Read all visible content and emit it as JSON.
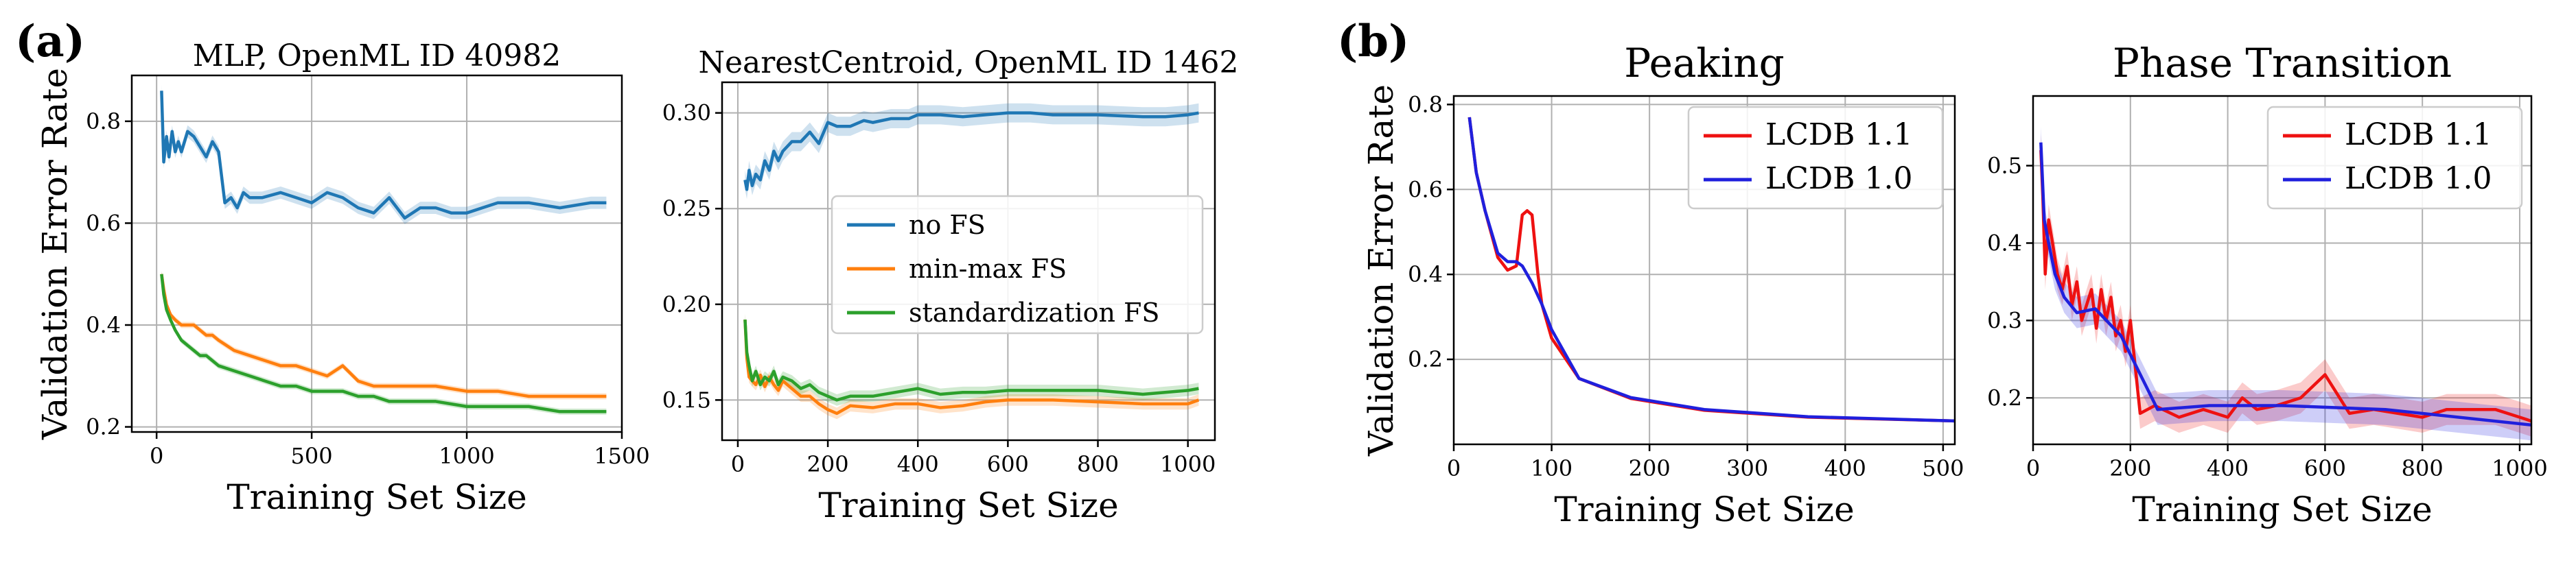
{
  "figure": {
    "panel_a_label": "(a)",
    "panel_b_label": "(b)"
  },
  "chart_data": [
    {
      "type": "line",
      "title": "MLP, OpenML ID 40982",
      "xlabel": "Training Set Size",
      "ylabel": "Validation Error Rate",
      "xlim": [
        -80,
        1500
      ],
      "ylim": [
        0.19,
        0.89
      ],
      "xticks": [
        0,
        500,
        1000,
        1500
      ],
      "yticks": [
        0.2,
        0.4,
        0.6,
        0.8
      ],
      "ytick_labels": [
        "0.2",
        "0.4",
        "0.6",
        "0.8"
      ],
      "legend": [],
      "series": [
        {
          "name": "no FS",
          "color": "#1f77b4",
          "band": 0.012,
          "x": [
            16,
            23,
            32,
            40,
            50,
            60,
            70,
            80,
            100,
            120,
            140,
            160,
            180,
            200,
            220,
            240,
            260,
            280,
            300,
            340,
            400,
            450,
            500,
            550,
            600,
            650,
            700,
            750,
            800,
            850,
            900,
            950,
            1000,
            1050,
            1100,
            1200,
            1300,
            1400,
            1450
          ],
          "y": [
            0.86,
            0.72,
            0.77,
            0.73,
            0.78,
            0.74,
            0.76,
            0.74,
            0.78,
            0.77,
            0.75,
            0.73,
            0.76,
            0.74,
            0.64,
            0.65,
            0.63,
            0.66,
            0.65,
            0.65,
            0.66,
            0.65,
            0.64,
            0.66,
            0.65,
            0.63,
            0.62,
            0.65,
            0.61,
            0.63,
            0.63,
            0.62,
            0.62,
            0.63,
            0.64,
            0.64,
            0.63,
            0.64,
            0.64
          ]
        },
        {
          "name": "min-max FS",
          "color": "#ff7f0e",
          "band": 0.006,
          "x": [
            16,
            23,
            32,
            45,
            60,
            80,
            100,
            120,
            140,
            160,
            180,
            200,
            250,
            300,
            350,
            400,
            450,
            500,
            550,
            600,
            650,
            700,
            750,
            800,
            900,
            1000,
            1100,
            1200,
            1300,
            1450
          ],
          "y": [
            0.5,
            0.47,
            0.44,
            0.42,
            0.41,
            0.4,
            0.4,
            0.4,
            0.39,
            0.38,
            0.38,
            0.37,
            0.35,
            0.34,
            0.33,
            0.32,
            0.32,
            0.31,
            0.3,
            0.32,
            0.29,
            0.28,
            0.28,
            0.28,
            0.28,
            0.27,
            0.27,
            0.26,
            0.26,
            0.26
          ]
        },
        {
          "name": "standardization FS",
          "color": "#2ca02c",
          "band": 0.006,
          "x": [
            16,
            23,
            32,
            45,
            60,
            80,
            100,
            120,
            140,
            160,
            180,
            200,
            250,
            300,
            350,
            400,
            450,
            500,
            550,
            600,
            650,
            700,
            750,
            800,
            900,
            1000,
            1100,
            1200,
            1300,
            1450
          ],
          "y": [
            0.5,
            0.46,
            0.43,
            0.41,
            0.39,
            0.37,
            0.36,
            0.35,
            0.34,
            0.34,
            0.33,
            0.32,
            0.31,
            0.3,
            0.29,
            0.28,
            0.28,
            0.27,
            0.27,
            0.27,
            0.26,
            0.26,
            0.25,
            0.25,
            0.25,
            0.24,
            0.24,
            0.24,
            0.23,
            0.23
          ]
        }
      ]
    },
    {
      "type": "line",
      "title": "NearestCentroid, OpenML ID 1462",
      "xlabel": "Training Set Size",
      "ylabel": "",
      "xlim": [
        -35,
        1060
      ],
      "ylim": [
        0.129,
        0.316
      ],
      "xticks": [
        0,
        200,
        400,
        600,
        800,
        1000
      ],
      "yticks": [
        0.15,
        0.2,
        0.25,
        0.3
      ],
      "ytick_labels": [
        "0.15",
        "0.20",
        "0.25",
        "0.30"
      ],
      "legend": [
        "no FS",
        "min-max FS",
        "standardization FS"
      ],
      "series": [
        {
          "name": "no FS",
          "color": "#1f77b4",
          "band": 0.005,
          "x": [
            16,
            20,
            25,
            32,
            40,
            50,
            60,
            70,
            80,
            90,
            100,
            120,
            140,
            160,
            180,
            200,
            220,
            250,
            280,
            300,
            340,
            380,
            400,
            450,
            500,
            600,
            650,
            700,
            800,
            900,
            950,
            1000,
            1024
          ],
          "y": [
            0.265,
            0.26,
            0.27,
            0.262,
            0.268,
            0.265,
            0.275,
            0.27,
            0.28,
            0.275,
            0.28,
            0.285,
            0.285,
            0.29,
            0.284,
            0.295,
            0.293,
            0.293,
            0.296,
            0.295,
            0.297,
            0.297,
            0.299,
            0.299,
            0.298,
            0.3,
            0.3,
            0.299,
            0.299,
            0.298,
            0.298,
            0.299,
            0.3
          ]
        },
        {
          "name": "min-max FS",
          "color": "#ff7f0e",
          "band": 0.003,
          "x": [
            16,
            20,
            25,
            32,
            40,
            50,
            60,
            70,
            80,
            90,
            100,
            120,
            140,
            160,
            180,
            200,
            220,
            250,
            300,
            350,
            400,
            450,
            500,
            550,
            600,
            700,
            800,
            900,
            1000,
            1024
          ],
          "y": [
            0.192,
            0.172,
            0.162,
            0.16,
            0.158,
            0.163,
            0.157,
            0.162,
            0.158,
            0.155,
            0.16,
            0.156,
            0.152,
            0.152,
            0.148,
            0.145,
            0.143,
            0.147,
            0.146,
            0.148,
            0.148,
            0.146,
            0.147,
            0.149,
            0.15,
            0.15,
            0.149,
            0.148,
            0.148,
            0.15
          ]
        },
        {
          "name": "standardization FS",
          "color": "#2ca02c",
          "band": 0.003,
          "x": [
            16,
            20,
            25,
            32,
            40,
            50,
            60,
            70,
            80,
            90,
            100,
            120,
            140,
            160,
            180,
            200,
            220,
            250,
            300,
            350,
            400,
            450,
            500,
            550,
            600,
            700,
            800,
            900,
            1000,
            1024
          ],
          "y": [
            0.192,
            0.175,
            0.168,
            0.16,
            0.165,
            0.158,
            0.162,
            0.16,
            0.165,
            0.158,
            0.162,
            0.16,
            0.156,
            0.158,
            0.154,
            0.152,
            0.15,
            0.152,
            0.152,
            0.154,
            0.156,
            0.153,
            0.154,
            0.154,
            0.155,
            0.155,
            0.155,
            0.153,
            0.155,
            0.156
          ]
        }
      ]
    },
    {
      "type": "line",
      "title": "Peaking",
      "xlabel": "Training Set Size",
      "ylabel": "Validation Error Rate",
      "xlim": [
        0,
        512
      ],
      "ylim": [
        0.0,
        0.82
      ],
      "xticks": [
        0,
        100,
        200,
        300,
        400,
        500
      ],
      "yticks": [
        0.2,
        0.4,
        0.6,
        0.8
      ],
      "ytick_labels": [
        "0.2",
        "0.4",
        "0.6",
        "0.8"
      ],
      "legend": [
        "LCDB 1.1",
        "LCDB 1.0"
      ],
      "series": [
        {
          "name": "LCDB 1.1",
          "color": "#ee1111",
          "band": 0.0,
          "x": [
            16,
            23,
            32,
            45,
            55,
            64,
            70,
            75,
            80,
            86,
            90,
            100,
            128,
            181,
            256,
            362,
            512
          ],
          "y": [
            0.77,
            0.64,
            0.55,
            0.44,
            0.41,
            0.42,
            0.54,
            0.55,
            0.54,
            0.4,
            0.33,
            0.25,
            0.155,
            0.108,
            0.08,
            0.064,
            0.055
          ]
        },
        {
          "name": "LCDB 1.0",
          "color": "#2020dd",
          "band": 0.0,
          "x": [
            16,
            23,
            32,
            45,
            55,
            64,
            70,
            80,
            90,
            100,
            128,
            181,
            256,
            362,
            512
          ],
          "y": [
            0.77,
            0.64,
            0.55,
            0.45,
            0.43,
            0.43,
            0.42,
            0.38,
            0.33,
            0.27,
            0.155,
            0.11,
            0.082,
            0.065,
            0.055
          ]
        }
      ]
    },
    {
      "type": "line",
      "title": "Phase Transition",
      "xlabel": "Training Set Size",
      "ylabel": "",
      "xlim": [
        0,
        1024
      ],
      "ylim": [
        0.14,
        0.59
      ],
      "xticks": [
        0,
        200,
        400,
        600,
        800,
        1000
      ],
      "yticks": [
        0.2,
        0.3,
        0.4,
        0.5
      ],
      "ytick_labels": [
        "0.2",
        "0.3",
        "0.4",
        "0.5"
      ],
      "legend": [
        "LCDB 1.1",
        "LCDB 1.0"
      ],
      "series": [
        {
          "name": "LCDB 1.1",
          "color": "#ee1111",
          "band": 0.02,
          "x": [
            16,
            20,
            25,
            32,
            40,
            50,
            60,
            70,
            80,
            90,
            100,
            110,
            120,
            130,
            140,
            150,
            160,
            170,
            180,
            190,
            200,
            220,
            250,
            300,
            350,
            400,
            430,
            460,
            500,
            550,
            600,
            650,
            700,
            750,
            800,
            850,
            900,
            950,
            1000,
            1024
          ],
          "y": [
            0.52,
            0.46,
            0.36,
            0.43,
            0.4,
            0.36,
            0.34,
            0.37,
            0.32,
            0.35,
            0.3,
            0.32,
            0.34,
            0.29,
            0.34,
            0.3,
            0.33,
            0.28,
            0.3,
            0.26,
            0.3,
            0.18,
            0.19,
            0.175,
            0.185,
            0.175,
            0.2,
            0.185,
            0.19,
            0.2,
            0.23,
            0.18,
            0.185,
            0.18,
            0.175,
            0.185,
            0.185,
            0.185,
            0.175,
            0.17
          ]
        },
        {
          "name": "LCDB 1.0",
          "color": "#2020dd",
          "band": 0.02,
          "x": [
            16,
            23,
            32,
            45,
            64,
            90,
            128,
            181,
            256,
            362,
            512,
            724,
            1024
          ],
          "y": [
            0.53,
            0.43,
            0.4,
            0.36,
            0.33,
            0.31,
            0.315,
            0.28,
            0.185,
            0.19,
            0.19,
            0.185,
            0.165
          ]
        }
      ]
    }
  ]
}
